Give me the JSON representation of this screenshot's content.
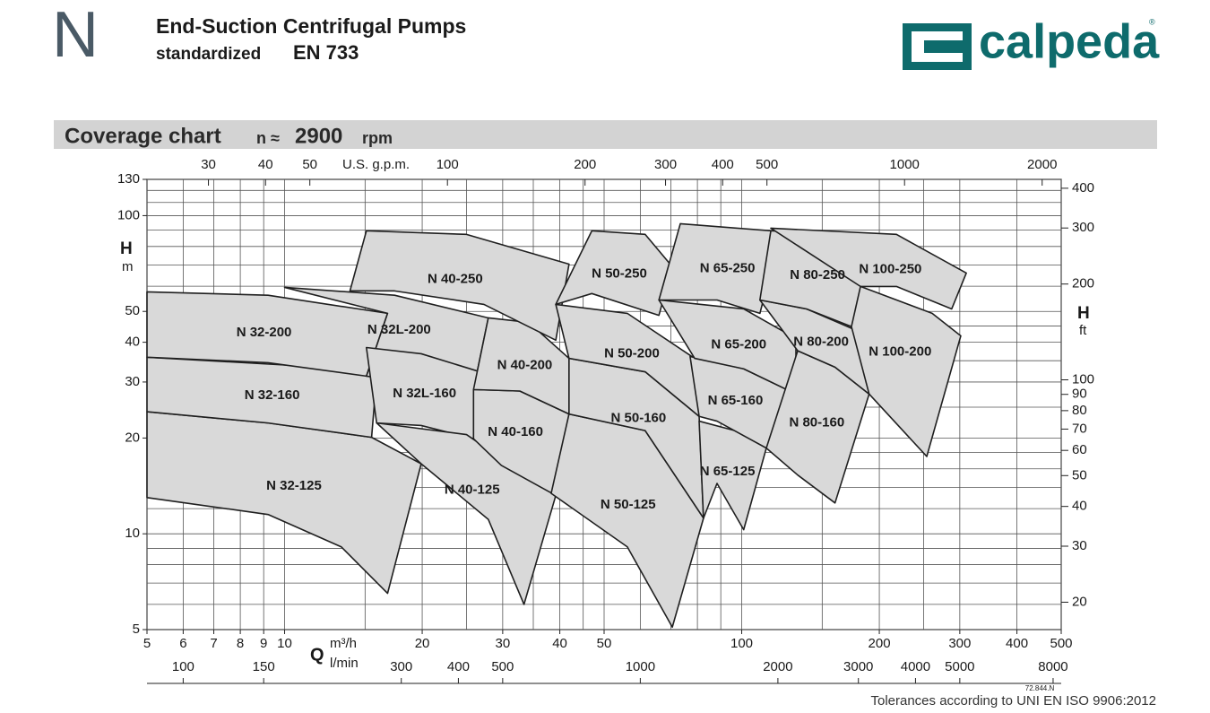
{
  "header": {
    "letter": "N",
    "title": "End-Suction Centrifugal Pumps",
    "subtitle_prefix": "standardized",
    "subtitle_code": "EN 733",
    "logo": "calpeda",
    "logo_mark": "®"
  },
  "section": {
    "title": "Coverage chart",
    "speed_symbol": "n ≈",
    "speed": "2900",
    "speed_unit": "rpm"
  },
  "chart_data": {
    "type": "coverage",
    "log_x": true,
    "log_y": true,
    "xlim": [
      5,
      500
    ],
    "ylim": [
      5,
      130
    ],
    "xticks": [
      5,
      6,
      7,
      8,
      9,
      10,
      20,
      30,
      40,
      50,
      100,
      200,
      300,
      400,
      500
    ],
    "xgrid": [
      5,
      6,
      7,
      8,
      9,
      10,
      15,
      20,
      25,
      30,
      35,
      40,
      45,
      50,
      60,
      70,
      80,
      90,
      100,
      150,
      200,
      250,
      300,
      400,
      500
    ],
    "yticks": [
      5,
      10,
      20,
      30,
      40,
      50,
      100,
      130
    ],
    "ygrid": [
      5,
      6,
      7,
      8,
      9,
      10,
      12,
      14,
      16,
      18,
      20,
      25,
      30,
      35,
      40,
      45,
      50,
      60,
      70,
      80,
      90,
      100,
      110,
      120,
      130
    ],
    "x_label": "Q",
    "x_unit": "m³/h",
    "x2_unit": "l/min",
    "y_label": "H",
    "y_unit": "m",
    "y2_label": "H",
    "y2_unit": "ft",
    "top_unit": "U.S. g.p.m.",
    "ft": {
      "factor": 3.281,
      "ticks": [
        20,
        30,
        40,
        50,
        60,
        70,
        80,
        90,
        100,
        200,
        300,
        400
      ]
    },
    "gpm": {
      "factor": 4.403,
      "ticks": [
        30,
        40,
        50,
        100,
        200,
        300,
        400,
        500,
        1000,
        2000
      ]
    },
    "lmin": {
      "factor": 16.667,
      "ticks": [
        100,
        150,
        300,
        400,
        500,
        1000,
        2000,
        3000,
        4000,
        5000,
        8000
      ]
    },
    "region_color": "#d9d9d9",
    "line_color": "#1f1f1f",
    "grid": true,
    "regions": [
      {
        "name": "N 32-125",
        "points": [
          [
            5,
            24.2
          ],
          [
            9.2,
            22.3
          ],
          [
            15.5,
            20.1
          ],
          [
            19.9,
            16.6
          ],
          [
            16.8,
            6.5
          ],
          [
            13.3,
            9.1
          ],
          [
            9.2,
            11.5
          ],
          [
            5,
            13
          ]
        ]
      },
      {
        "name": "N 32-160",
        "points": [
          [
            5,
            35.9
          ],
          [
            12.1,
            33.4
          ],
          [
            15.9,
            31.3
          ],
          [
            15.5,
            20.1
          ],
          [
            9.2,
            22.3
          ],
          [
            5,
            24.2
          ]
        ]
      },
      {
        "name": "N 32-200",
        "points": [
          [
            5,
            57.6
          ],
          [
            9.2,
            56.2
          ],
          [
            16.8,
            49.3
          ],
          [
            15.1,
            31.3
          ],
          [
            9.2,
            34.5
          ],
          [
            5,
            35.9
          ]
        ]
      },
      {
        "name": "N 32L-200",
        "points": [
          [
            10,
            59.5
          ],
          [
            17.4,
            56.2
          ],
          [
            27.9,
            47.7
          ],
          [
            25.9,
            28.4
          ],
          [
            15.1,
            31.3
          ],
          [
            16.8,
            49.3
          ]
        ]
      },
      {
        "name": "N 32L-160",
        "points": [
          [
            15.1,
            38.5
          ],
          [
            19.9,
            36.8
          ],
          [
            27.9,
            31.7
          ],
          [
            25.9,
            19.9
          ],
          [
            19.9,
            21.9
          ],
          [
            15.9,
            22.3
          ]
        ]
      },
      {
        "name": "N 40-125",
        "points": [
          [
            15.9,
            22.3
          ],
          [
            25,
            20.5
          ],
          [
            39.2,
            13.2
          ],
          [
            33.4,
            6.0
          ],
          [
            27.9,
            11.1
          ],
          [
            19.9,
            16.6
          ]
        ]
      },
      {
        "name": "N 40-160",
        "points": [
          [
            25.9,
            28.4
          ],
          [
            32.7,
            28.1
          ],
          [
            41.9,
            23.8
          ],
          [
            39.2,
            13.2
          ],
          [
            29.8,
            16.4
          ],
          [
            25.9,
            19.9
          ]
        ]
      },
      {
        "name": "N 40-200",
        "points": [
          [
            27.9,
            47.7
          ],
          [
            34.2,
            46.2
          ],
          [
            41.9,
            35.6
          ],
          [
            41.9,
            23.8
          ],
          [
            32.7,
            28.1
          ],
          [
            25.9,
            28.4
          ]
        ]
      },
      {
        "name": "N 40-250",
        "points": [
          [
            15.1,
            89.6
          ],
          [
            25,
            87.3
          ],
          [
            41.9,
            70.4
          ],
          [
            39.2,
            40.6
          ],
          [
            27.3,
            52.6
          ],
          [
            17.4,
            58
          ],
          [
            13.9,
            58
          ]
        ]
      },
      {
        "name": "N 50-125",
        "points": [
          [
            41.9,
            23.8
          ],
          [
            61.5,
            21.1
          ],
          [
            82.5,
            11.2
          ],
          [
            70.5,
            5.09
          ],
          [
            56.2,
            9.1
          ],
          [
            38.3,
            13.4
          ]
        ]
      },
      {
        "name": "N 50-160",
        "points": [
          [
            41.9,
            35.6
          ],
          [
            61.5,
            32.3
          ],
          [
            80.7,
            23.4
          ],
          [
            82.5,
            11.2
          ],
          [
            61.5,
            21.1
          ],
          [
            41.9,
            23.8
          ]
        ]
      },
      {
        "name": "N 50-200",
        "points": [
          [
            39.2,
            52.6
          ],
          [
            56.2,
            49.3
          ],
          [
            78.9,
            35.6
          ],
          [
            80.7,
            23.4
          ],
          [
            61.5,
            32.3
          ],
          [
            41.9,
            35.6
          ]
        ]
      },
      {
        "name": "N 50-250",
        "points": [
          [
            47,
            89.6
          ],
          [
            61.5,
            87.3
          ],
          [
            70.5,
            69.1
          ],
          [
            65.9,
            48.6
          ],
          [
            47,
            56.9
          ],
          [
            39.2,
            52.6
          ]
        ]
      },
      {
        "name": "N 65-125",
        "points": [
          [
            80.7,
            22.6
          ],
          [
            96.6,
            21.1
          ],
          [
            113.2,
            18.6
          ],
          [
            101,
            10.3
          ],
          [
            88.3,
            14.4
          ],
          [
            82.5,
            11.2
          ]
        ]
      },
      {
        "name": "N 65-160",
        "points": [
          [
            77.1,
            36.1
          ],
          [
            101,
            33
          ],
          [
            131.4,
            27.5
          ],
          [
            113.2,
            18.6
          ],
          [
            88.3,
            22.6
          ],
          [
            80.7,
            23.4
          ]
        ]
      },
      {
        "name": "N 65-200",
        "points": [
          [
            65.9,
            54.3
          ],
          [
            101,
            50.9
          ],
          [
            131.4,
            41.1
          ],
          [
            131.4,
            27.5
          ],
          [
            101,
            33
          ],
          [
            78.9,
            35.6
          ]
        ]
      },
      {
        "name": "N 65-250",
        "points": [
          [
            73.4,
            94.3
          ],
          [
            115.8,
            89.6
          ],
          [
            120,
            81.8
          ],
          [
            109.6,
            49.3
          ],
          [
            88.3,
            54.3
          ],
          [
            65.9,
            54.3
          ]
        ]
      },
      {
        "name": "N 80-160",
        "points": [
          [
            132.6,
            37.6
          ],
          [
            160,
            33.4
          ],
          [
            190,
            27.5
          ],
          [
            160,
            12.5
          ],
          [
            132.6,
            15.3
          ],
          [
            113.2,
            18.6
          ]
        ]
      },
      {
        "name": "N 80-200",
        "points": [
          [
            109.6,
            54.3
          ],
          [
            138.7,
            50.9
          ],
          [
            180,
            43.3
          ],
          [
            190,
            27.5
          ],
          [
            160,
            33.4
          ],
          [
            132.6,
            37.6
          ]
        ]
      },
      {
        "name": "N 80-250",
        "points": [
          [
            115.8,
            89.6
          ],
          [
            166,
            87.3
          ],
          [
            194.6,
            77.6
          ],
          [
            173.8,
            44.8
          ],
          [
            138.7,
            50.9
          ],
          [
            109.6,
            54.3
          ]
        ]
      },
      {
        "name": "N 100-250",
        "points": [
          [
            115.8,
            91.3
          ],
          [
            218,
            87.3
          ],
          [
            310,
            66
          ],
          [
            288,
            50.9
          ],
          [
            218,
            59.9
          ],
          [
            181.9,
            59.9
          ]
        ]
      },
      {
        "name": "N 100-200",
        "points": [
          [
            181.9,
            59.9
          ],
          [
            261,
            49.3
          ],
          [
            301.5,
            41.9
          ],
          [
            254,
            17.5
          ],
          [
            190,
            27.5
          ],
          [
            173.8,
            44.8
          ]
        ]
      }
    ]
  },
  "footer": {
    "code": "72.844.N",
    "note": "Tolerances according to UNI EN ISO 9906:2012"
  }
}
